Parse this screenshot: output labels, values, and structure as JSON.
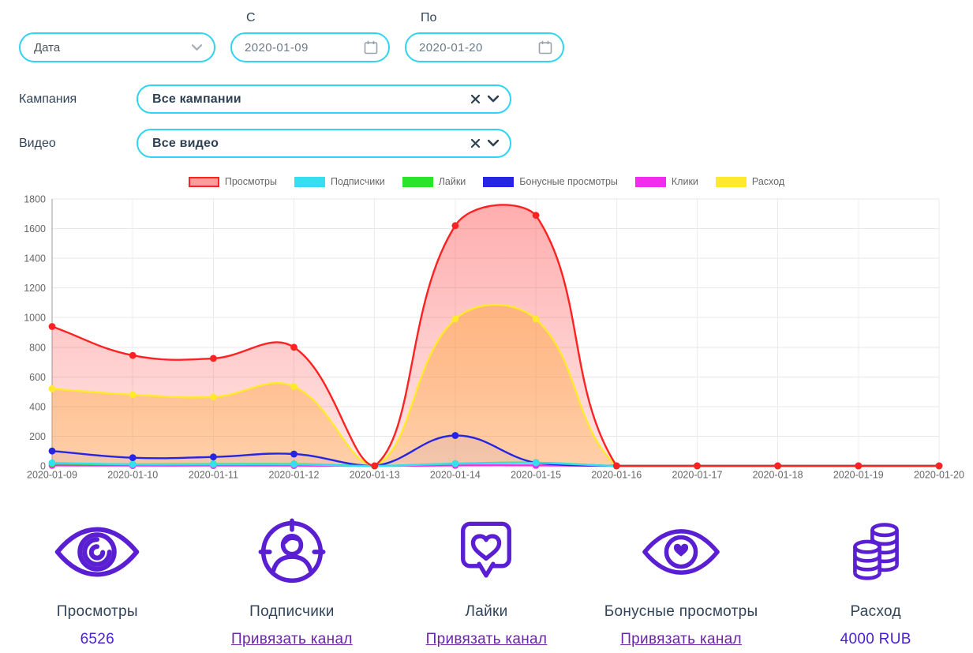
{
  "filters": {
    "metric_select": {
      "value": "Дата"
    },
    "from": {
      "label": "С",
      "value": "2020-01-09"
    },
    "to": {
      "label": "По",
      "value": "2020-01-20"
    },
    "campaign": {
      "label": "Кампания",
      "value": "Все кампании"
    },
    "video": {
      "label": "Видео",
      "value": "Все видео"
    }
  },
  "chart_data": {
    "type": "area",
    "x": [
      "2020-01-09",
      "2020-01-10",
      "2020-01-11",
      "2020-01-12",
      "2020-01-13",
      "2020-01-14",
      "2020-01-15",
      "2020-01-16",
      "2020-01-17",
      "2020-01-18",
      "2020-01-19",
      "2020-01-20"
    ],
    "yticks": [
      0,
      200,
      400,
      600,
      800,
      1000,
      1200,
      1400,
      1600,
      1800
    ],
    "ylim": [
      0,
      1800
    ],
    "grid": true,
    "legend_position": "top",
    "series": [
      {
        "name": "Просмотры",
        "color": "#ff2222",
        "legend_fill": "rgba(255,34,34,0.45)",
        "fill": true,
        "fill_color": "#ff3030",
        "fill_from": 0.4,
        "fill_to": 0.12,
        "fill_z": 1,
        "line_z": 6,
        "values": [
          940,
          745,
          725,
          800,
          0,
          1620,
          1690,
          0,
          0,
          0,
          0,
          0
        ]
      },
      {
        "name": "Подписчики",
        "color": "#36dff0",
        "fill": false,
        "line_z": 5,
        "values": [
          20,
          10,
          10,
          10,
          0,
          15,
          20,
          0,
          0,
          0,
          0,
          0
        ]
      },
      {
        "name": "Лайки",
        "color": "#2ae42a",
        "fill": false,
        "line_z": 3,
        "values": [
          15,
          10,
          12,
          12,
          0,
          15,
          22,
          0,
          0,
          0,
          0,
          0
        ]
      },
      {
        "name": "Бонусные просмотры",
        "color": "#2525e2",
        "fill": true,
        "fill_color": "#5050dd",
        "fill_from": 0.18,
        "fill_to": 0.07,
        "fill_z": 3,
        "line_z": 4,
        "values": [
          100,
          55,
          60,
          80,
          0,
          205,
          20,
          0,
          0,
          0,
          0,
          0
        ]
      },
      {
        "name": "Клики",
        "color": "#f32bee",
        "fill": false,
        "line_z": 2,
        "values": [
          3,
          2,
          2,
          2,
          0,
          3,
          3,
          0,
          0,
          0,
          0,
          0
        ]
      },
      {
        "name": "Расход",
        "color": "#ffe92c",
        "fill": true,
        "fill_color": "#ffa028",
        "fill_from": 0.5,
        "fill_to": 0.32,
        "fill_z": 2,
        "line_z": 1,
        "values": [
          520,
          480,
          465,
          535,
          0,
          990,
          990,
          0,
          0,
          0,
          0,
          0
        ]
      }
    ]
  },
  "stats": [
    {
      "icon": "views-eye-icon",
      "label": "Просмотры",
      "value": "6526",
      "is_link": false
    },
    {
      "icon": "subscribers-icon",
      "label": "Подписчики",
      "value": "Привязать канал",
      "is_link": true
    },
    {
      "icon": "likes-icon",
      "label": "Лайки",
      "value": "Привязать канал",
      "is_link": true
    },
    {
      "icon": "bonus-views-icon",
      "label": "Бонусные просмотры",
      "value": "Привязать канал",
      "is_link": true
    },
    {
      "icon": "spend-coins-icon",
      "label": "Расход",
      "value": "4000 RUB",
      "is_link": false
    }
  ],
  "colors": {
    "accent_cyan": "#2fd4f1",
    "navy": "#31445a",
    "icon_purple": "#5a1fd2",
    "link_purple": "#6b24a8",
    "value_purple": "#4a1fd6",
    "axis_text": "#666666"
  }
}
